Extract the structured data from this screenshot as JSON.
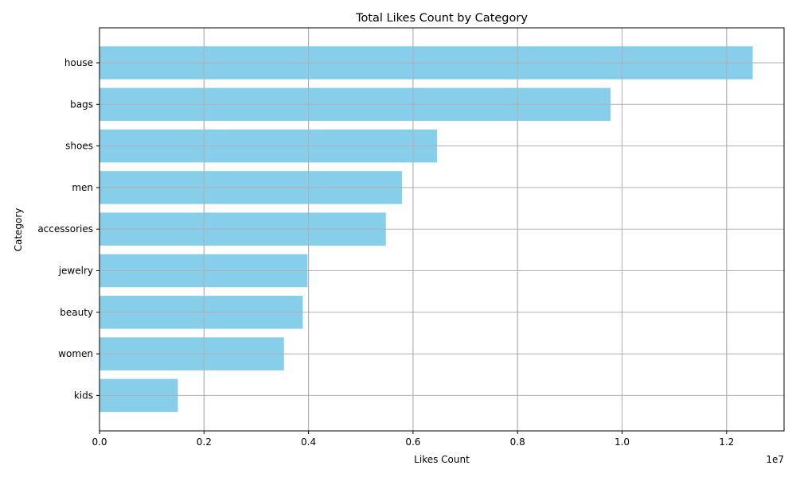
{
  "chart_data": {
    "type": "bar",
    "orientation": "horizontal",
    "title": "Total Likes Count by Category",
    "xlabel": "Likes Count",
    "ylabel": "Category",
    "x_offset_label": "1e7",
    "xlim": [
      0,
      13100000
    ],
    "x_ticks": [
      0,
      2000000,
      4000000,
      6000000,
      8000000,
      10000000,
      12000000
    ],
    "x_tick_labels": [
      "0.0",
      "0.2",
      "0.4",
      "0.6",
      "0.8",
      "1.0",
      "1.2"
    ],
    "categories": [
      "house",
      "bags",
      "shoes",
      "men",
      "accessories",
      "jewelry",
      "beauty",
      "women",
      "kids"
    ],
    "values": [
      12500000,
      9780000,
      6460000,
      5790000,
      5480000,
      3980000,
      3890000,
      3530000,
      1500000
    ],
    "bar_color": "#87ceeb",
    "grid": true,
    "grid_color": "#b0b0b0"
  }
}
